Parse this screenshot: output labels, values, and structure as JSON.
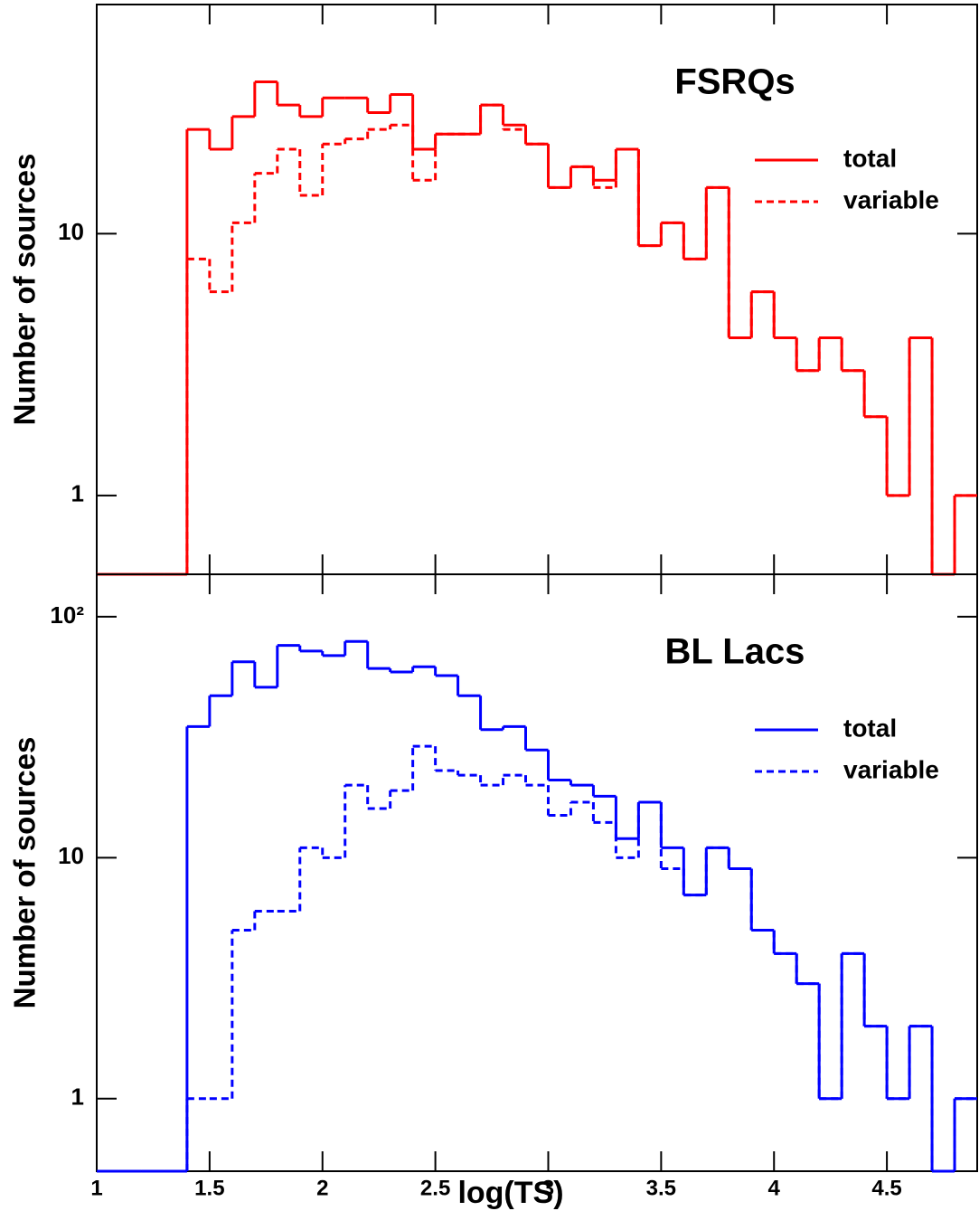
{
  "chart_data": [
    {
      "type": "histogram",
      "title": "FSRQs",
      "ylabel": "Number of sources",
      "log_scale": true,
      "legend": "upper right",
      "bins": [
        1.0,
        1.1,
        1.2,
        1.3,
        1.4,
        1.5,
        1.6,
        1.7,
        1.8,
        1.9,
        2.0,
        2.1,
        2.2,
        2.3,
        2.4,
        2.5,
        2.6,
        2.7,
        2.8,
        2.9,
        3.0,
        3.1,
        3.2,
        3.3,
        3.4,
        3.5,
        3.6,
        3.7,
        3.8,
        3.9,
        4.0,
        4.1,
        4.2,
        4.3,
        4.4,
        4.5,
        4.6,
        4.7,
        4.8,
        4.9
      ],
      "series": [
        {
          "name": "total",
          "color": "#ff0000",
          "style": "solid",
          "values": [
            0,
            0,
            0,
            0,
            25,
            21,
            28,
            38,
            31,
            28,
            33,
            33,
            29,
            34,
            21,
            24,
            24,
            31,
            26,
            22,
            15,
            18,
            16,
            21,
            9,
            11,
            8,
            15,
            4,
            6,
            4,
            3,
            4,
            3,
            2,
            1,
            4,
            0,
            1
          ]
        },
        {
          "name": "variable",
          "color": "#ff0000",
          "style": "dashed",
          "values": [
            0,
            0,
            0,
            0,
            8,
            6,
            11,
            17,
            21,
            14,
            22,
            23,
            25,
            26,
            16,
            24,
            24,
            31,
            25,
            22,
            15,
            18,
            15,
            21,
            9,
            11,
            8,
            15,
            4,
            6,
            4,
            3,
            4,
            3,
            2,
            1,
            4,
            0,
            1
          ]
        }
      ],
      "xlim": [
        1,
        4.9
      ],
      "ylim": [
        0.5,
        75
      ],
      "yticks": [
        1,
        10
      ]
    },
    {
      "type": "histogram",
      "title": "BL Lacs",
      "ylabel": "Number of sources",
      "xlabel": "log(TS)",
      "log_scale": true,
      "legend": "upper right",
      "bins": [
        1.0,
        1.1,
        1.2,
        1.3,
        1.4,
        1.5,
        1.6,
        1.7,
        1.8,
        1.9,
        2.0,
        2.1,
        2.2,
        2.3,
        2.4,
        2.5,
        2.6,
        2.7,
        2.8,
        2.9,
        3.0,
        3.1,
        3.2,
        3.3,
        3.4,
        3.5,
        3.6,
        3.7,
        3.8,
        3.9,
        4.0,
        4.1,
        4.2,
        4.3,
        4.4,
        4.5,
        4.6,
        4.7,
        4.8,
        4.9
      ],
      "series": [
        {
          "name": "total",
          "color": "#0000ff",
          "style": "solid",
          "values": [
            0,
            0,
            0,
            0,
            35,
            47,
            65,
            51,
            76,
            72,
            69,
            79,
            61,
            59,
            62,
            57,
            47,
            34,
            35,
            28,
            21,
            20,
            18,
            12,
            17,
            11,
            7,
            11,
            9,
            5,
            4,
            3,
            1,
            4,
            2,
            1,
            2,
            0,
            1
          ]
        },
        {
          "name": "variable",
          "color": "#0000ff",
          "style": "dashed",
          "values": [
            0,
            0,
            0,
            0,
            1,
            1,
            5,
            6,
            6,
            11,
            10,
            20,
            16,
            19,
            29,
            23,
            22,
            20,
            22,
            20,
            15,
            17,
            14,
            10,
            17,
            9,
            7,
            11,
            9,
            5,
            4,
            3,
            1,
            4,
            2,
            1,
            2,
            0,
            1
          ]
        }
      ],
      "xlim": [
        1,
        4.9
      ],
      "xticks": [
        1,
        1.5,
        2,
        2.5,
        3,
        3.5,
        4,
        4.5
      ],
      "ylim": [
        0.5,
        150
      ],
      "yticks": [
        1,
        10,
        {
          "value": 100,
          "label": "10²"
        }
      ]
    }
  ]
}
